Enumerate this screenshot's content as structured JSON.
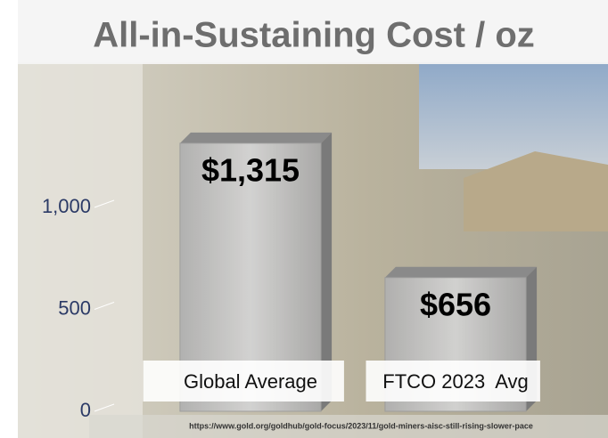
{
  "chart_data": {
    "type": "bar",
    "title": "All-in-Sustaining Cost / oz",
    "categories": [
      "Global Average",
      "FTCO 2023  Avg"
    ],
    "values": [
      1315,
      656
    ],
    "value_labels": [
      "$1,315",
      "$656"
    ],
    "color": "#9c9c9c",
    "ylim": [
      0,
      1500
    ],
    "yticks": [
      0,
      500,
      {
        "value": 1000,
        "label": "1,000"
      }
    ],
    "source": "https://www.gold.org/goldhub/gold-focus/2023/11/gold-miners-aisc-still-rising-slower-pace"
  }
}
